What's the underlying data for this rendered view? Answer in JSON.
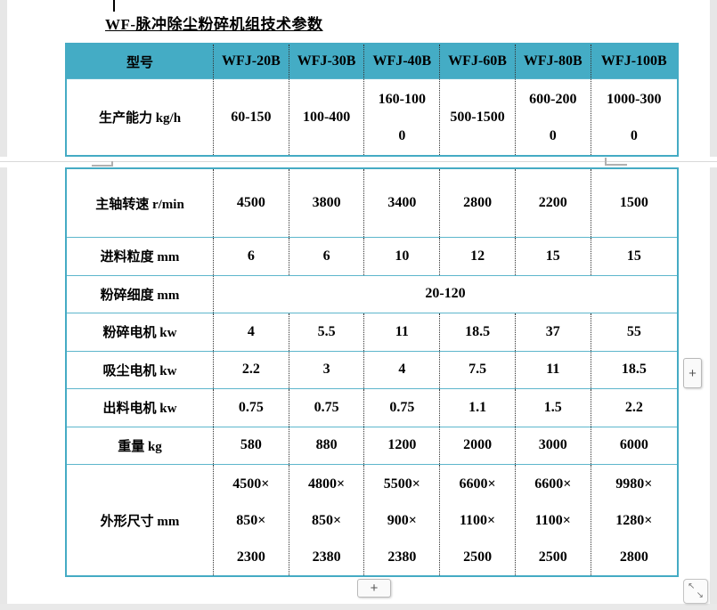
{
  "title": "WF-脉冲除尘粉碎机组技术参数",
  "colors": {
    "accent_teal_border": "#45abc4",
    "header_fill": "#44acc5",
    "page_edge_gray": "#e7e7e7"
  },
  "table1": {
    "header": [
      "型号",
      "WFJ-20B",
      "WFJ-30B",
      "WFJ-40B",
      "WFJ-60B",
      "WFJ-80B",
      "WFJ-100B"
    ],
    "rows": [
      {
        "label": "生产能力 kg/h",
        "values": [
          "60-150",
          "100-400",
          "160-100\n0",
          "500-1500",
          "600-200\n0",
          "1000-300\n0"
        ]
      }
    ]
  },
  "table2": {
    "rows": [
      {
        "label": "主轴转速 r/min",
        "values": [
          "4500",
          "3800",
          "3400",
          "2800",
          "2200",
          "1500"
        ]
      },
      {
        "label": "进料粒度 mm",
        "values": [
          "6",
          "6",
          "10",
          "12",
          "15",
          "15"
        ]
      },
      {
        "label": "粉碎细度 mm",
        "span_value": "20-120"
      },
      {
        "label": "粉碎电机 kw",
        "values": [
          "4",
          "5.5",
          "11",
          "18.5",
          "37",
          "55"
        ]
      },
      {
        "label": "吸尘电机 kw",
        "values": [
          "2.2",
          "3",
          "4",
          "7.5",
          "11",
          "18.5"
        ]
      },
      {
        "label": "出料电机 kw",
        "values": [
          "0.75",
          "0.75",
          "0.75",
          "1.1",
          "1.5",
          "2.2"
        ]
      },
      {
        "label": "重量 kg",
        "values": [
          "580",
          "880",
          "1200",
          "2000",
          "3000",
          "6000"
        ]
      },
      {
        "label": "外形尺寸 mm",
        "values": [
          "4500×\n850×\n2300",
          "4800×\n850×\n2380",
          "5500×\n900×\n2380",
          "6600×\n1100×\n2500",
          "6600×\n1100×\n2500",
          "9980×\n1280×\n2800"
        ]
      }
    ]
  },
  "controls": {
    "add_column_label": "+",
    "add_row_label": "+",
    "resize_arrow_nw": "↖",
    "resize_arrow_se": "↘"
  }
}
